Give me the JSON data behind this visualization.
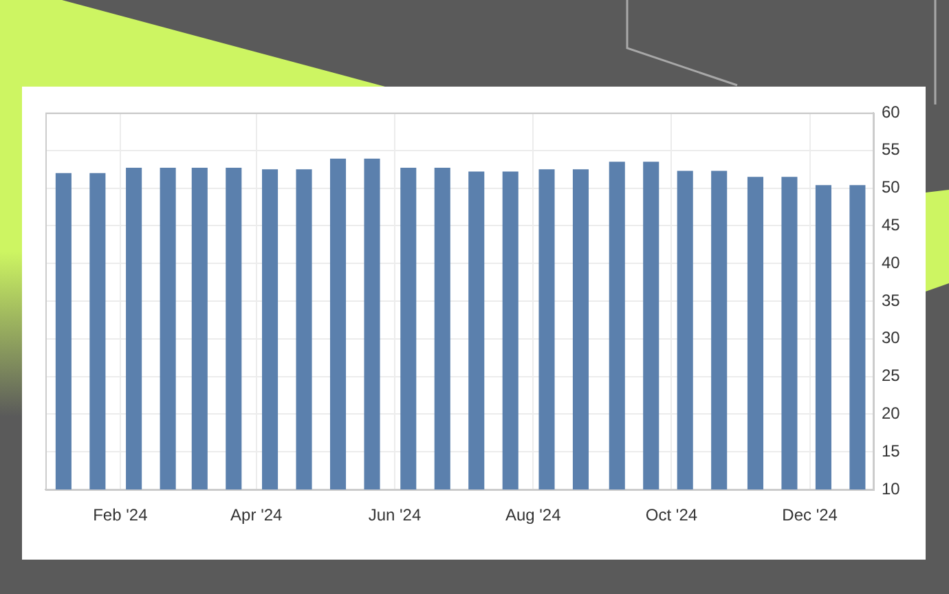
{
  "chart_data": {
    "type": "bar",
    "x": [
      "2024-01-07",
      "2024-01-22",
      "2024-02-07",
      "2024-02-22",
      "2024-03-07",
      "2024-03-22",
      "2024-04-07",
      "2024-04-22",
      "2024-05-07",
      "2024-05-22",
      "2024-06-07",
      "2024-06-22",
      "2024-07-07",
      "2024-07-22",
      "2024-08-07",
      "2024-08-22",
      "2024-09-07",
      "2024-09-22",
      "2024-10-07",
      "2024-10-22",
      "2024-11-07",
      "2024-11-22",
      "2024-12-07",
      "2024-12-22"
    ],
    "values": [
      52.0,
      52.0,
      52.7,
      52.7,
      52.7,
      52.7,
      52.5,
      52.5,
      53.9,
      53.9,
      52.7,
      52.7,
      52.2,
      52.2,
      52.5,
      52.5,
      53.5,
      53.5,
      52.3,
      52.3,
      51.5,
      51.5,
      50.4,
      50.4
    ],
    "color": "#5b80ad",
    "xlim": [
      "2023-12-30",
      "2024-12-29"
    ],
    "xticks": [
      {
        "value": "2024-02-01",
        "label": "Feb '24"
      },
      {
        "value": "2024-04-01",
        "label": "Apr '24"
      },
      {
        "value": "2024-06-01",
        "label": "Jun '24"
      },
      {
        "value": "2024-08-01",
        "label": "Aug '24"
      },
      {
        "value": "2024-10-01",
        "label": "Oct '24"
      },
      {
        "value": "2024-12-01",
        "label": "Dec '24"
      }
    ],
    "ylim": [
      10,
      60
    ],
    "yticks": [
      10,
      15,
      20,
      25,
      30,
      35,
      40,
      45,
      50,
      55,
      60
    ],
    "grid": true
  }
}
